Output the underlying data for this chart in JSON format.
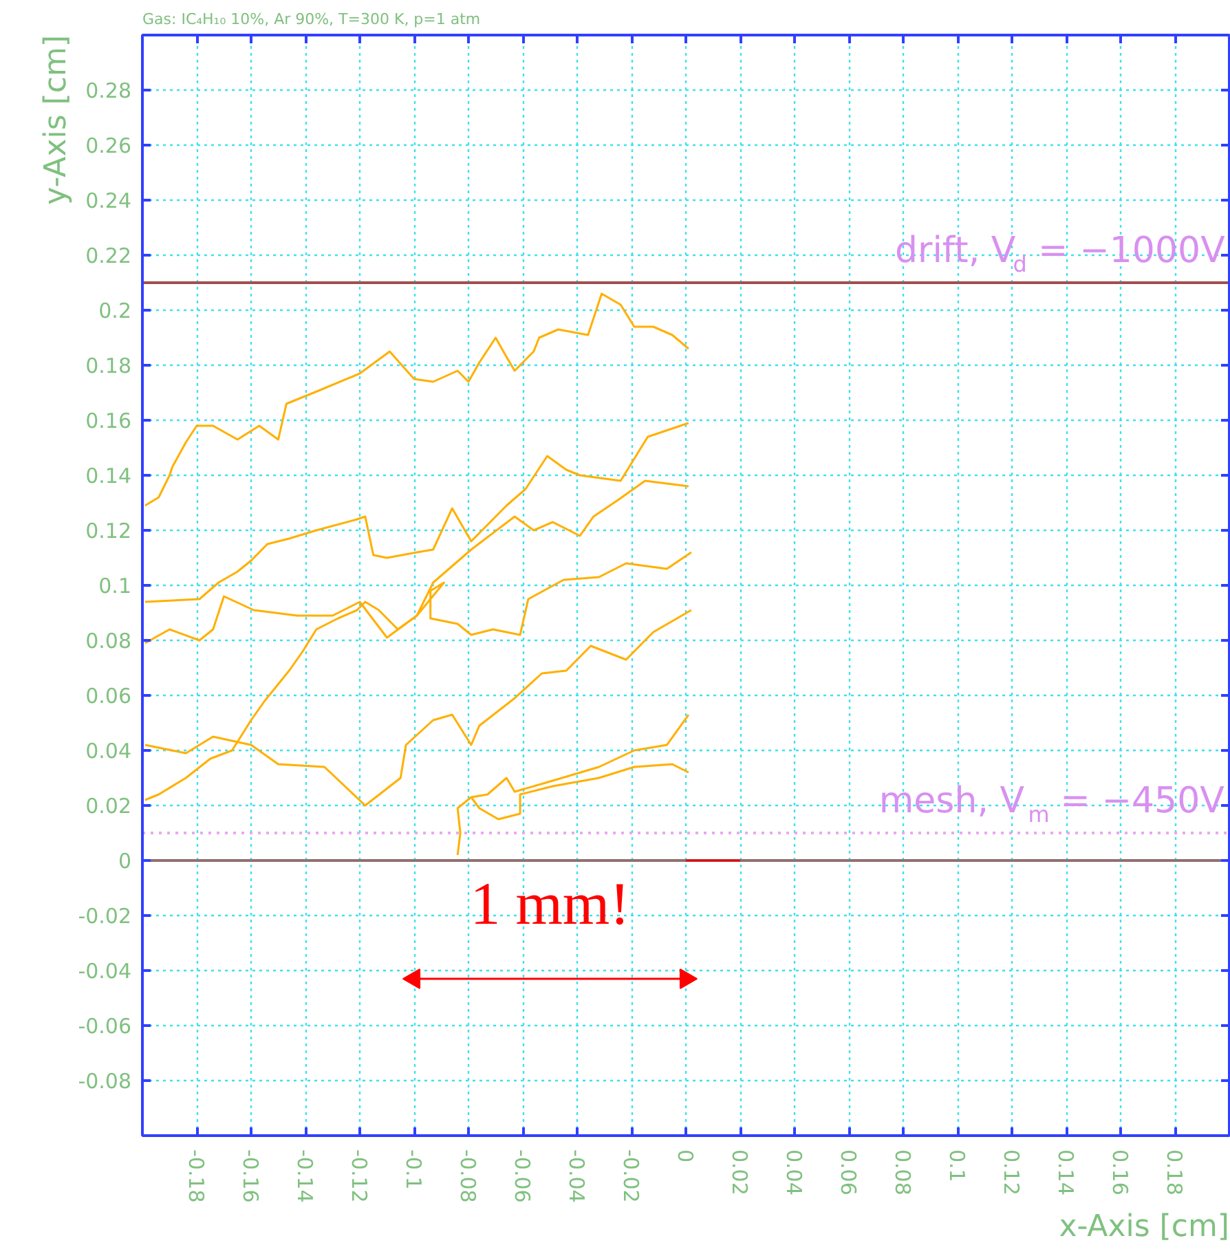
{
  "chart_data": {
    "type": "line",
    "title": "Gas: IC₄H₁₀ 10%, Ar 90%, T=300 K, p=1 atm",
    "xlabel": "x-Axis [cm]",
    "ylabel": "y-Axis [cm]",
    "xlim": [
      -0.2,
      0.2
    ],
    "ylim": [
      -0.1,
      0.3
    ],
    "xticks": [
      -0.18,
      -0.16,
      -0.14,
      -0.12,
      -0.1,
      -0.08,
      -0.06,
      -0.04,
      -0.02,
      0,
      0.02,
      0.04,
      0.06,
      0.08,
      0.1,
      0.12,
      0.14,
      0.16,
      0.18
    ],
    "yticks": [
      -0.08,
      -0.06,
      -0.04,
      -0.02,
      0,
      0.02,
      0.04,
      0.06,
      0.08,
      0.1,
      0.12,
      0.14,
      0.16,
      0.18,
      0.2,
      0.22,
      0.24,
      0.26,
      0.28
    ],
    "grid": true,
    "marker": "none",
    "ref_lines": [
      {
        "axis": "y",
        "value": 0.21,
        "color": "#a05050"
      },
      {
        "axis": "y",
        "value": 0.01,
        "color": "#e8a8f0",
        "line_style": "dotted"
      },
      {
        "axis": "y",
        "value": 0,
        "color": "#907070"
      }
    ],
    "annotations": [
      {
        "text": "drift, V$_{d}$ = −1000V",
        "x": 0.2,
        "y": 0.21
      },
      {
        "text": "mesh, V$_{m}$ = −450V",
        "x": 0.2,
        "y": 0.01
      },
      "1 mm!"
    ],
    "series": [
      {
        "color": "#ffb000",
        "x": [
          -0.199,
          -0.194,
          -0.19,
          -0.189,
          -0.184,
          -0.18,
          -0.174,
          -0.165,
          -0.157,
          -0.15,
          -0.147,
          -0.137,
          -0.12,
          -0.109,
          -0.1,
          -0.093,
          -0.084,
          -0.08,
          -0.076,
          -0.07,
          -0.066,
          -0.063,
          -0.056,
          -0.054,
          -0.047,
          -0.036,
          -0.031,
          -0.024,
          -0.019,
          -0.012,
          -0.005,
          0.001
        ],
        "values": [
          0.129,
          0.132,
          0.14,
          0.143,
          0.152,
          0.158,
          0.158,
          0.153,
          0.158,
          0.153,
          0.166,
          0.17,
          0.177,
          0.185,
          0.175,
          0.174,
          0.178,
          0.174,
          0.181,
          0.19,
          0.183,
          0.178,
          0.185,
          0.19,
          0.193,
          0.191,
          0.206,
          0.202,
          0.194,
          0.194,
          0.191,
          0.186
        ]
      },
      {
        "color": "#ffb000",
        "x": [
          -0.199,
          -0.179,
          -0.172,
          -0.165,
          -0.16,
          -0.154,
          -0.146,
          -0.136,
          -0.121,
          -0.118,
          -0.115,
          -0.11,
          -0.099,
          -0.093,
          -0.086,
          -0.079,
          -0.066,
          -0.059,
          -0.051,
          -0.044,
          -0.039,
          -0.024,
          -0.019,
          -0.014,
          0.001
        ],
        "values": [
          0.094,
          0.095,
          0.101,
          0.105,
          0.109,
          0.115,
          0.117,
          0.12,
          0.124,
          0.125,
          0.111,
          0.11,
          0.112,
          0.113,
          0.128,
          0.116,
          0.129,
          0.135,
          0.147,
          0.142,
          0.14,
          0.138,
          0.146,
          0.154,
          0.159
        ]
      },
      {
        "color": "#ffb000",
        "x": [
          0.001,
          -0.015,
          -0.025,
          -0.034,
          -0.039,
          -0.049,
          -0.056,
          -0.063,
          -0.079,
          -0.093,
          -0.099,
          -0.106,
          -0.113,
          -0.118,
          -0.121,
          -0.128,
          -0.136,
          -0.141,
          -0.146,
          -0.155,
          -0.16,
          -0.167,
          -0.175,
          -0.184,
          -0.194,
          -0.199
        ],
        "values": [
          0.136,
          0.138,
          0.131,
          0.125,
          0.118,
          0.123,
          0.12,
          0.125,
          0.113,
          0.101,
          0.089,
          0.084,
          0.091,
          0.094,
          0.091,
          0.088,
          0.084,
          0.076,
          0.069,
          0.058,
          0.051,
          0.04,
          0.037,
          0.03,
          0.024,
          0.022
        ]
      },
      {
        "color": "#ffb000",
        "x": [
          0.002,
          -0.007,
          -0.022,
          -0.032,
          -0.045,
          -0.058,
          -0.061,
          -0.071,
          -0.079,
          -0.084,
          -0.094,
          -0.094,
          -0.089,
          -0.099,
          -0.11,
          -0.12,
          -0.13,
          -0.143,
          -0.159,
          -0.17,
          -0.174,
          -0.179,
          -0.19,
          -0.199
        ],
        "values": [
          0.112,
          0.106,
          0.108,
          0.103,
          0.102,
          0.095,
          0.082,
          0.084,
          0.082,
          0.086,
          0.088,
          0.098,
          0.101,
          0.089,
          0.081,
          0.094,
          0.089,
          0.089,
          0.091,
          0.096,
          0.084,
          0.08,
          0.084,
          0.079
        ]
      },
      {
        "color": "#ffb000",
        "x": [
          0.002,
          -0.012,
          -0.022,
          -0.035,
          -0.044,
          -0.053,
          -0.063,
          -0.076,
          -0.079,
          -0.086,
          -0.093,
          -0.103,
          -0.105,
          -0.118,
          -0.133,
          -0.15,
          -0.16,
          -0.174,
          -0.184,
          -0.199
        ],
        "values": [
          0.091,
          0.083,
          0.073,
          0.078,
          0.069,
          0.068,
          0.059,
          0.049,
          0.042,
          0.053,
          0.051,
          0.042,
          0.03,
          0.02,
          0.034,
          0.035,
          0.042,
          0.045,
          0.039,
          0.042
        ]
      },
      {
        "color": "#ffb000",
        "x": [
          0.001,
          -0.007,
          -0.019,
          -0.032,
          -0.049,
          -0.063,
          -0.066,
          -0.073,
          -0.079,
          -0.084,
          -0.083,
          -0.084
        ],
        "values": [
          0.053,
          0.042,
          0.04,
          0.034,
          0.029,
          0.025,
          0.03,
          0.024,
          0.023,
          0.019,
          0.01,
          0.002
        ]
      },
      {
        "color": "#ffb000",
        "x": [
          0.001,
          -0.005,
          -0.019,
          -0.032,
          -0.049,
          -0.061,
          -0.061,
          -0.069,
          -0.076,
          -0.079
        ],
        "values": [
          0.032,
          0.035,
          0.034,
          0.03,
          0.027,
          0.024,
          0.017,
          0.015,
          0.019,
          0.023
        ]
      },
      {
        "color": "#e00000",
        "x": [
          0,
          0.02
        ],
        "values": [
          0,
          0
        ]
      },
      {
        "color": "#ff0000",
        "marker": "triangle",
        "x": [
          -0.1,
          0
        ],
        "values": [
          -0.043,
          -0.043
        ]
      }
    ]
  }
}
